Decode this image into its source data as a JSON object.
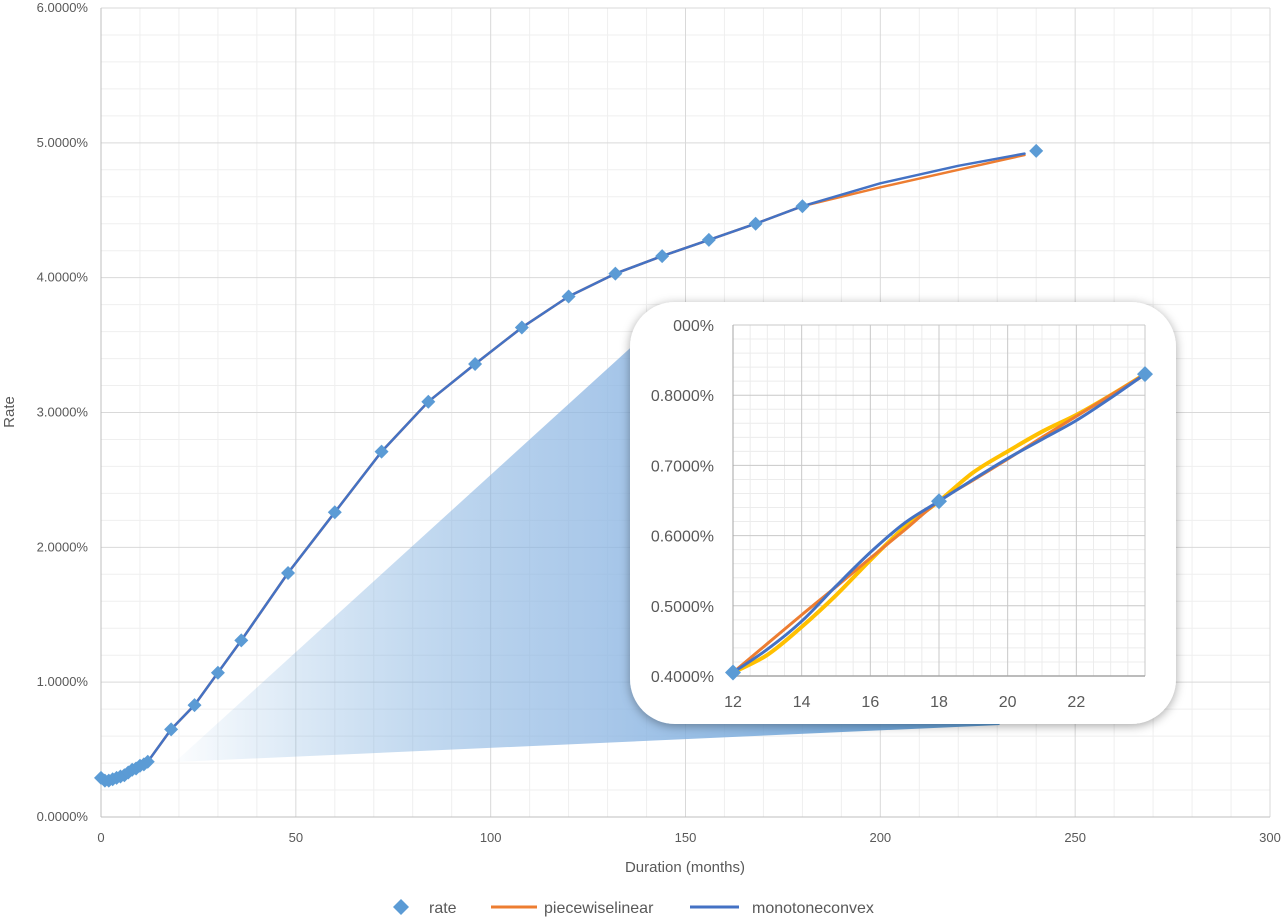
{
  "chart_data": [
    {
      "type": "line",
      "title": "",
      "xlabel": "Duration (months)",
      "ylabel": "Rate",
      "xlim": [
        0,
        300
      ],
      "ylim": [
        0.0,
        6.0
      ],
      "x_ticks": [
        "0",
        "50",
        "100",
        "150",
        "200",
        "250",
        "300"
      ],
      "y_ticks": [
        "0.0000%",
        "1.0000%",
        "2.0000%",
        "3.0000%",
        "4.0000%",
        "5.0000%",
        "6.0000%"
      ],
      "grid": true,
      "legend_position": "bottom",
      "series": [
        {
          "name": "rate",
          "style": "markers",
          "color": "#5B9BD5",
          "x": [
            0,
            1,
            2,
            3,
            4,
            5,
            6,
            7,
            8,
            9,
            10,
            11,
            12,
            18,
            24,
            30,
            36,
            48,
            60,
            72,
            84,
            96,
            108,
            120,
            132,
            144,
            156,
            168,
            180,
            240
          ],
          "y": [
            0.29,
            0.27,
            0.27,
            0.28,
            0.29,
            0.3,
            0.31,
            0.33,
            0.35,
            0.36,
            0.38,
            0.39,
            0.41,
            0.65,
            0.83,
            1.07,
            1.31,
            1.81,
            2.26,
            2.71,
            3.08,
            3.36,
            3.63,
            3.86,
            4.03,
            4.16,
            4.28,
            4.4,
            4.53,
            4.94
          ]
        },
        {
          "name": "piecewiselinear",
          "style": "line",
          "color": "#ED7D31",
          "x": [
            0,
            1,
            2,
            3,
            4,
            5,
            6,
            7,
            8,
            9,
            10,
            11,
            12,
            18,
            24,
            30,
            36,
            48,
            60,
            72,
            84,
            96,
            108,
            120,
            132,
            144,
            156,
            168,
            180,
            200,
            220,
            237
          ],
          "y": [
            0.29,
            0.27,
            0.27,
            0.28,
            0.29,
            0.3,
            0.31,
            0.33,
            0.35,
            0.36,
            0.38,
            0.39,
            0.41,
            0.65,
            0.83,
            1.07,
            1.31,
            1.81,
            2.26,
            2.71,
            3.08,
            3.36,
            3.63,
            3.86,
            4.03,
            4.16,
            4.28,
            4.4,
            4.53,
            4.67,
            4.8,
            4.91
          ]
        },
        {
          "name": "monotoneconvex",
          "style": "line",
          "color": "#4472C4",
          "x": [
            0,
            1,
            2,
            3,
            4,
            5,
            6,
            7,
            8,
            9,
            10,
            11,
            12,
            18,
            24,
            30,
            36,
            48,
            60,
            72,
            84,
            96,
            108,
            120,
            132,
            144,
            156,
            168,
            180,
            200,
            220,
            237
          ],
          "y": [
            0.29,
            0.27,
            0.27,
            0.28,
            0.29,
            0.3,
            0.31,
            0.33,
            0.35,
            0.36,
            0.38,
            0.39,
            0.41,
            0.65,
            0.83,
            1.07,
            1.31,
            1.81,
            2.26,
            2.71,
            3.08,
            3.36,
            3.63,
            3.86,
            4.03,
            4.16,
            4.28,
            4.4,
            4.53,
            4.7,
            4.83,
            4.92
          ]
        }
      ]
    },
    {
      "type": "line",
      "title": "",
      "xlabel": "",
      "ylabel": "",
      "xlim": [
        12,
        24
      ],
      "ylim": [
        0.4,
        0.9
      ],
      "x_ticks": [
        "12",
        "14",
        "16",
        "18",
        "20",
        "22"
      ],
      "y_ticks": [
        "0.4000%",
        "0.5000%",
        "0.6000%",
        "0.7000%",
        "0.8000%",
        "000%"
      ],
      "grid": true,
      "series": [
        {
          "name": "rate",
          "style": "markers",
          "color": "#5B9BD5",
          "x": [
            12,
            18,
            24
          ],
          "y": [
            0.405,
            0.649,
            0.83
          ]
        },
        {
          "name": "",
          "style": "line",
          "color": "#FFC000",
          "x": [
            12,
            13,
            14,
            15,
            16,
            17,
            18,
            19,
            20,
            21,
            22,
            23,
            24
          ],
          "y": [
            0.405,
            0.43,
            0.47,
            0.515,
            0.565,
            0.612,
            0.649,
            0.69,
            0.72,
            0.748,
            0.772,
            0.8,
            0.83
          ]
        },
        {
          "name": "piecewiselinear",
          "style": "line",
          "color": "#ED7D31",
          "x": [
            12,
            13,
            14,
            15,
            16,
            17,
            18,
            19,
            20,
            21,
            22,
            23,
            24
          ],
          "y": [
            0.405,
            0.446,
            0.487,
            0.527,
            0.568,
            0.608,
            0.649,
            0.679,
            0.709,
            0.74,
            0.77,
            0.8,
            0.83
          ]
        },
        {
          "name": "monotoneconvex",
          "style": "line",
          "color": "#4472C4",
          "x": [
            12,
            13,
            14,
            15,
            16,
            17,
            18,
            19,
            20,
            21,
            22,
            23,
            24
          ],
          "y": [
            0.405,
            0.438,
            0.478,
            0.528,
            0.576,
            0.618,
            0.649,
            0.68,
            0.71,
            0.737,
            0.764,
            0.796,
            0.83
          ]
        }
      ]
    }
  ]
}
